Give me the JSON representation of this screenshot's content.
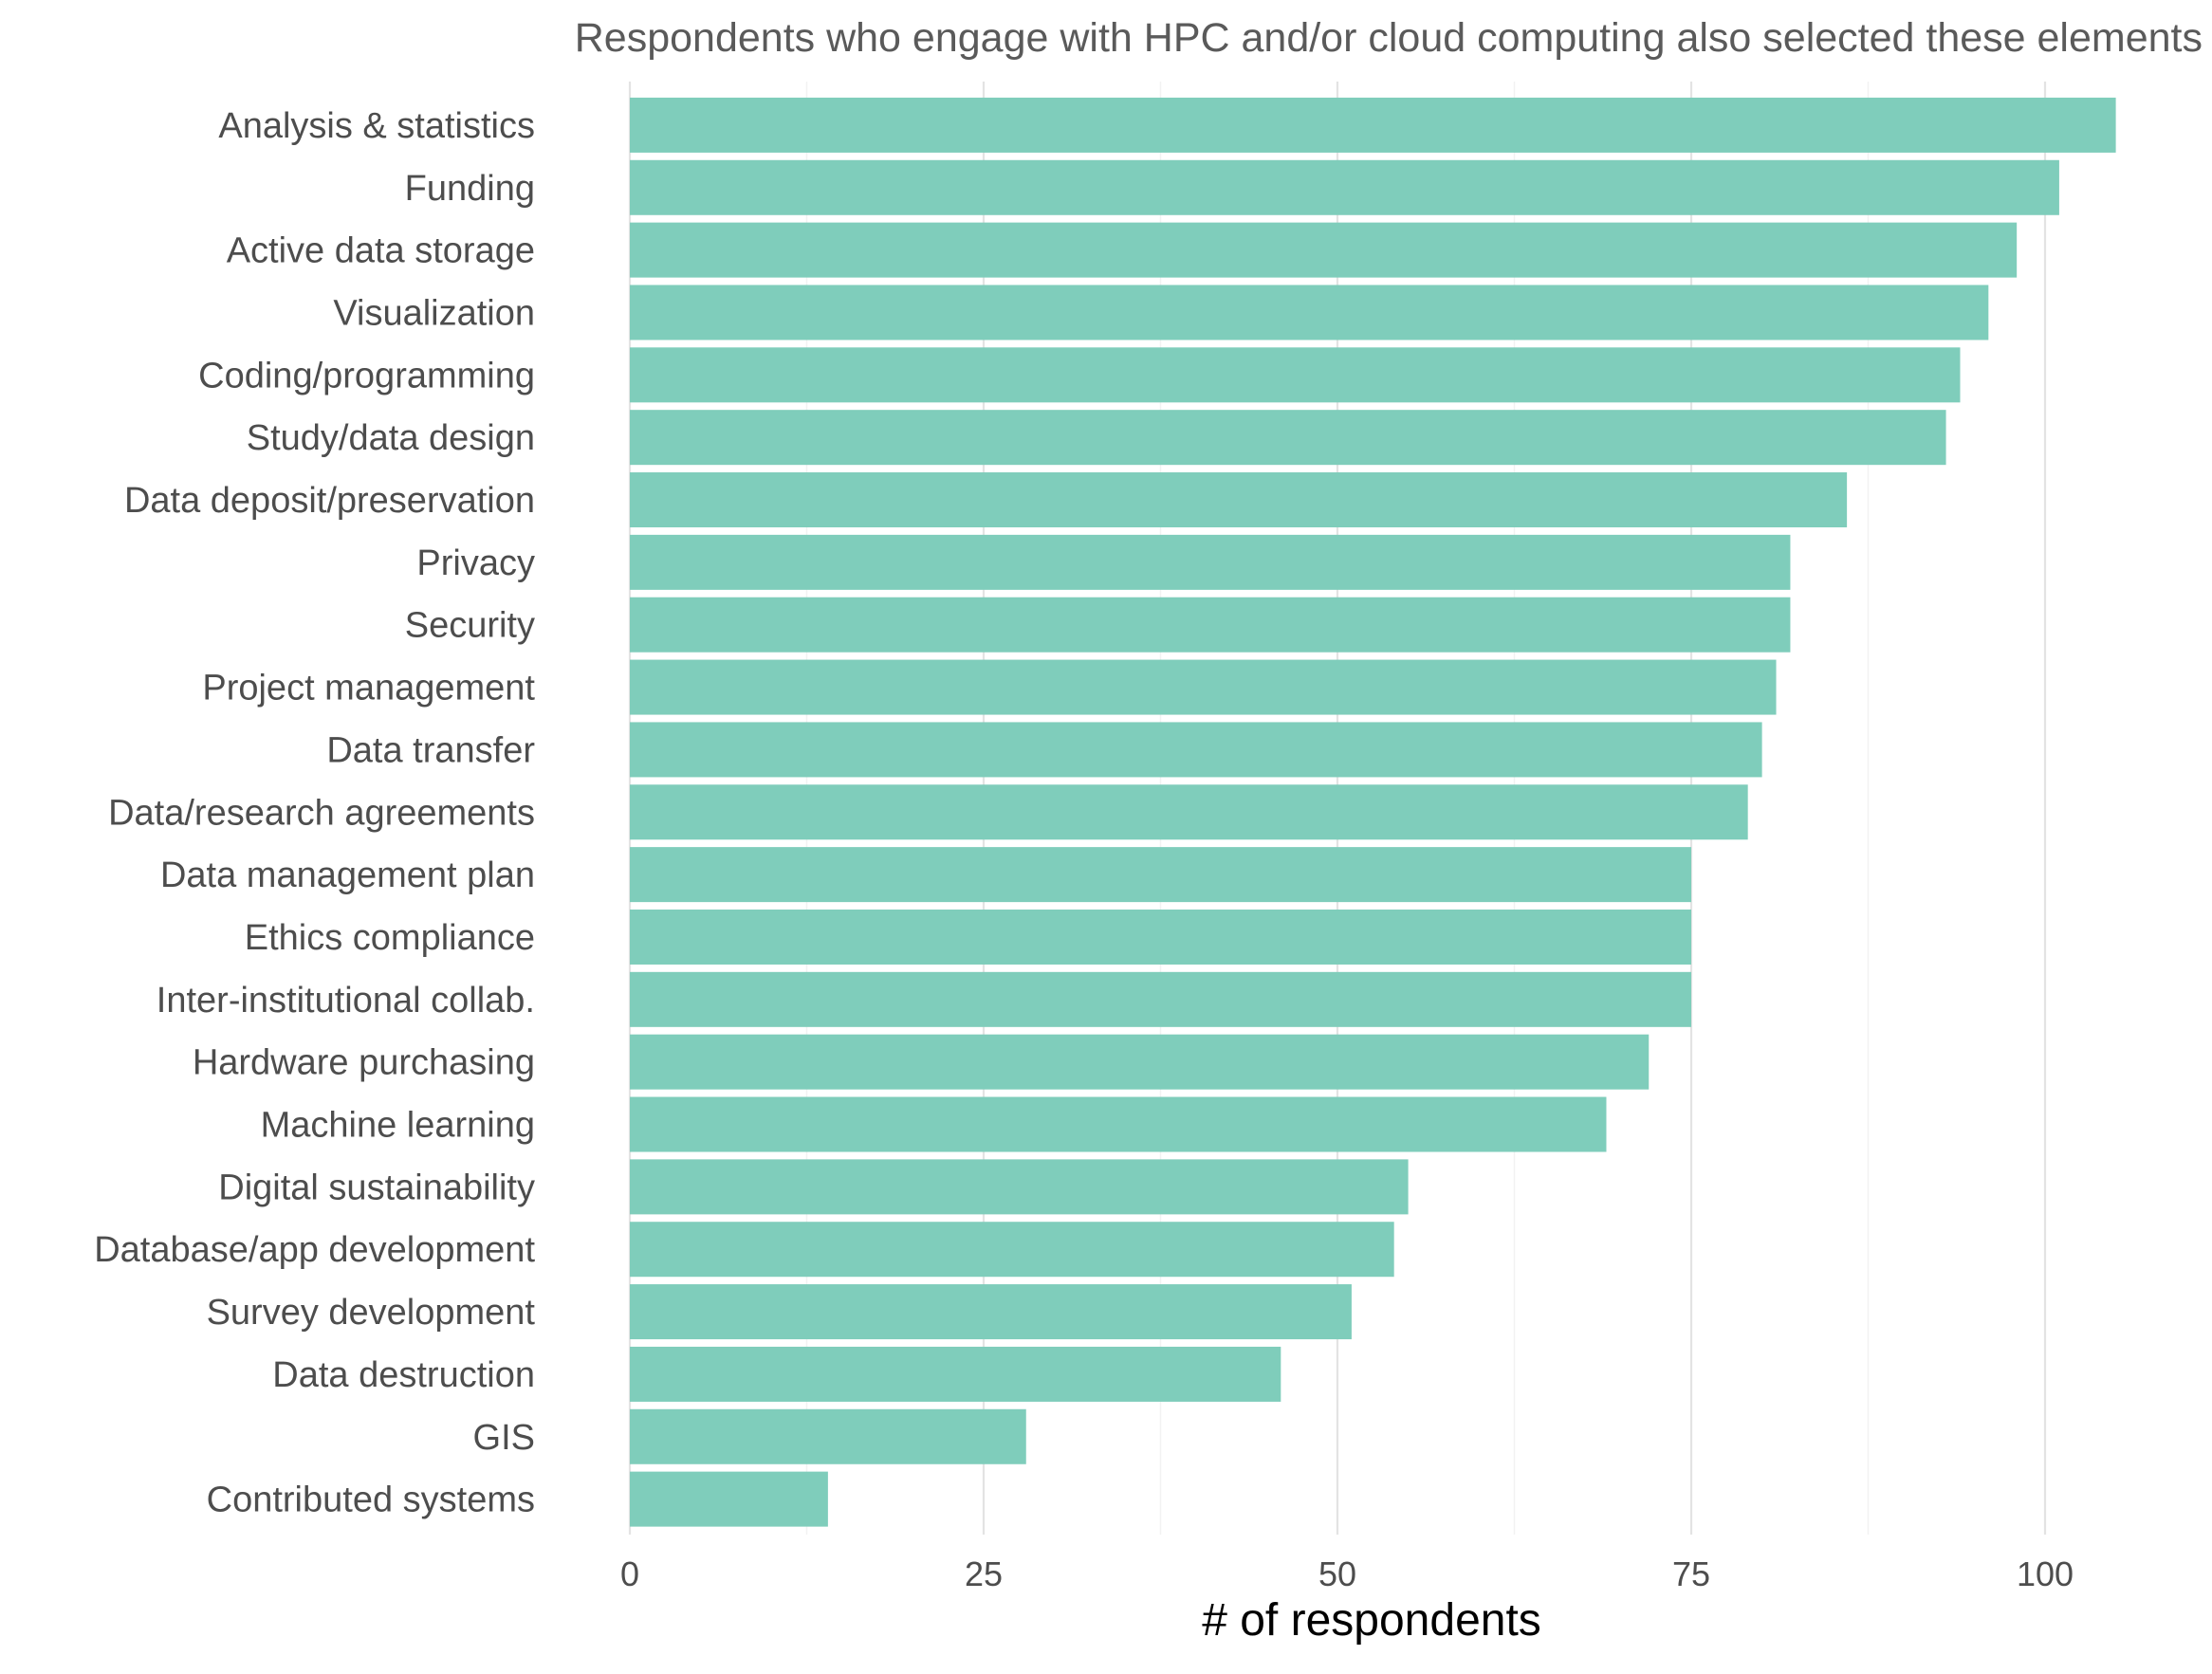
{
  "chart_data": {
    "type": "bar",
    "orientation": "horizontal",
    "title": "Respondents who engage with HPC and/or cloud computing also selected these elements",
    "xlabel": "# of respondents",
    "ylabel": "",
    "xlim": [
      0,
      110
    ],
    "xticks": [
      0,
      25,
      50,
      75,
      100
    ],
    "grid": true,
    "bar_color": "#7fcdbb",
    "categories": [
      "Analysis & statistics",
      "Funding",
      "Active data storage",
      "Visualization",
      "Coding/programming",
      "Study/data design",
      "Data deposit/preservation",
      "Privacy",
      "Security",
      "Project management",
      "Data transfer",
      "Data/research agreements",
      "Data management plan",
      "Ethics compliance",
      "Inter-institutional collab.",
      "Hardware purchasing",
      "Machine learning",
      "Digital sustainability",
      "Database/app development",
      "Survey development",
      "Data destruction",
      "GIS",
      "Contributed systems"
    ],
    "values": [
      105,
      101,
      98,
      96,
      94,
      93,
      86,
      82,
      82,
      81,
      80,
      79,
      75,
      75,
      75,
      72,
      69,
      55,
      54,
      51,
      46,
      28,
      14
    ]
  }
}
